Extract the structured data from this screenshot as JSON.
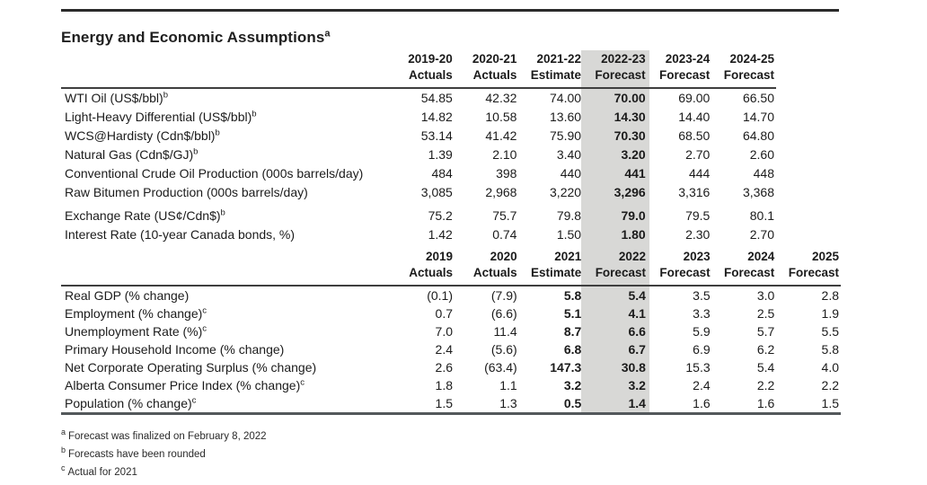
{
  "title": "Energy and Economic Assumptions",
  "title_footnote": "a",
  "colors": {
    "highlight_band": "#d8d8d6",
    "rule_dark": "#2b2b2b",
    "rule_mid": "#3f3f3f",
    "rule_bottom": "#53585b"
  },
  "energy_table": {
    "columns": [
      {
        "year": "2019-20",
        "type": "Actuals",
        "highlight": false
      },
      {
        "year": "2020-21",
        "type": "Actuals",
        "highlight": false
      },
      {
        "year": "2021-22",
        "type": "Estimate",
        "highlight": false
      },
      {
        "year": "2022-23",
        "type": "Forecast",
        "highlight": true
      },
      {
        "year": "2023-24",
        "type": "Forecast",
        "highlight": false
      },
      {
        "year": "2024-25",
        "type": "Forecast",
        "highlight": false
      }
    ],
    "bold_columns": [
      3
    ],
    "rows": [
      {
        "label": "WTI Oil (US$/bbl)",
        "footnote": "b",
        "values": [
          "54.85",
          "42.32",
          "74.00",
          "70.00",
          "69.00",
          "66.50"
        ]
      },
      {
        "label": "Light-Heavy Differential (US$/bbl)",
        "footnote": "b",
        "values": [
          "14.82",
          "10.58",
          "13.60",
          "14.30",
          "14.40",
          "14.70"
        ]
      },
      {
        "label": "WCS@Hardisty (Cdn$/bbl)",
        "footnote": "b",
        "values": [
          "53.14",
          "41.42",
          "75.90",
          "70.30",
          "68.50",
          "64.80"
        ]
      },
      {
        "label": "Natural Gas (Cdn$/GJ)",
        "footnote": "b",
        "values": [
          "1.39",
          "2.10",
          "3.40",
          "3.20",
          "2.70",
          "2.60"
        ]
      },
      {
        "label": "Conventional Crude Oil Production (000s barrels/day)",
        "values": [
          "484",
          "398",
          "440",
          "441",
          "444",
          "448"
        ]
      },
      {
        "label": "Raw Bitumen Production (000s barrels/day)",
        "values": [
          "3,085",
          "2,968",
          "3,220",
          "3,296",
          "3,316",
          "3,368"
        ]
      },
      {
        "label": "Exchange Rate (US¢/Cdn$)",
        "footnote": "b",
        "group_gap": true,
        "values": [
          "75.2",
          "75.7",
          "79.8",
          "79.0",
          "79.5",
          "80.1"
        ]
      },
      {
        "label": "Interest Rate (10-year Canada bonds, %)",
        "values": [
          "1.42",
          "0.74",
          "1.50",
          "1.80",
          "2.30",
          "2.70"
        ]
      }
    ]
  },
  "economic_table": {
    "columns": [
      {
        "year": "2019",
        "type": "Actuals",
        "highlight": false
      },
      {
        "year": "2020",
        "type": "Actuals",
        "highlight": false
      },
      {
        "year": "2021",
        "type": "Estimate",
        "highlight": false
      },
      {
        "year": "2022",
        "type": "Forecast",
        "highlight": true
      },
      {
        "year": "2023",
        "type": "Forecast",
        "highlight": false
      },
      {
        "year": "2024",
        "type": "Forecast",
        "highlight": false
      },
      {
        "year": "2025",
        "type": "Forecast",
        "highlight": false
      }
    ],
    "bold_columns": [
      2,
      3
    ],
    "rows": [
      {
        "label": "Real GDP (% change)",
        "values": [
          "(0.1)",
          "(7.9)",
          "5.8",
          "5.4",
          "3.5",
          "3.0",
          "2.8"
        ]
      },
      {
        "label": "Employment (% change)",
        "footnote": "c",
        "values": [
          "0.7",
          "(6.6)",
          "5.1",
          "4.1",
          "3.3",
          "2.5",
          "1.9"
        ]
      },
      {
        "label": "Unemployment Rate (%)",
        "footnote": "c",
        "values": [
          "7.0",
          "11.4",
          "8.7",
          "6.6",
          "5.9",
          "5.7",
          "5.5"
        ]
      },
      {
        "label": "Primary Household Income (% change)",
        "values": [
          "2.4",
          "(5.6)",
          "6.8",
          "6.7",
          "6.9",
          "6.2",
          "5.8"
        ]
      },
      {
        "label": "Net Corporate Operating Surplus (% change)",
        "values": [
          "2.6",
          "(63.4)",
          "147.3",
          "30.8",
          "15.3",
          "5.4",
          "4.0"
        ]
      },
      {
        "label": "Alberta Consumer Price Index (% change)",
        "footnote": "c",
        "values": [
          "1.8",
          "1.1",
          "3.2",
          "3.2",
          "2.4",
          "2.2",
          "2.2"
        ]
      },
      {
        "label": "Population (% change)",
        "footnote": "c",
        "values": [
          "1.5",
          "1.3",
          "0.5",
          "1.4",
          "1.6",
          "1.6",
          "1.5"
        ]
      }
    ]
  },
  "footnotes": [
    {
      "marker": "a",
      "text": "Forecast was finalized on February 8, 2022"
    },
    {
      "marker": "b",
      "text": "Forecasts have been rounded"
    },
    {
      "marker": "c",
      "text": "Actual for 2021"
    }
  ]
}
